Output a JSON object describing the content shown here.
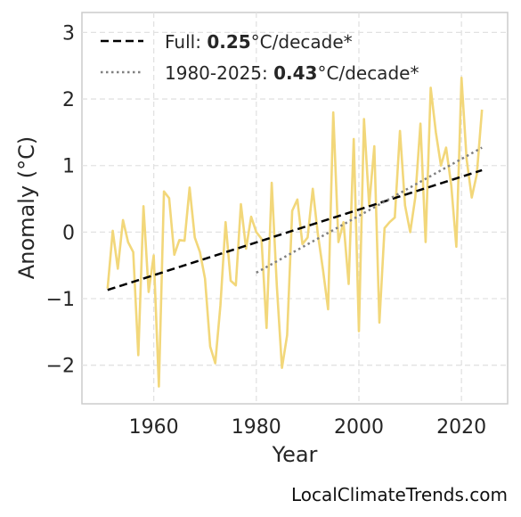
{
  "chart_data": {
    "type": "line",
    "xlabel": "Year",
    "ylabel": "Anomaly (°C)",
    "xlim": [
      1946,
      2029
    ],
    "ylim": [
      -2.58,
      3.3
    ],
    "xticks": [
      "1960",
      "1980",
      "2000",
      "2020"
    ],
    "xtick_values": [
      1960,
      1980,
      2000,
      2020
    ],
    "yticks": [
      "−2",
      "−1",
      "0",
      "1",
      "2",
      "3"
    ],
    "ytick_values": [
      -2,
      -1,
      0,
      1,
      2,
      3
    ],
    "grid": true,
    "legend_placement": "top-left",
    "series": [
      {
        "kind": "anomaly",
        "color": "#f2d77a",
        "x": [
          1951,
          1952,
          1953,
          1954,
          1955,
          1956,
          1957,
          1958,
          1959,
          1960,
          1961,
          1962,
          1963,
          1964,
          1965,
          1966,
          1967,
          1968,
          1969,
          1970,
          1971,
          1972,
          1973,
          1974,
          1975,
          1976,
          1977,
          1978,
          1979,
          1980,
          1981,
          1982,
          1983,
          1984,
          1985,
          1986,
          1987,
          1988,
          1989,
          1990,
          1991,
          1992,
          1993,
          1994,
          1995,
          1996,
          1997,
          1998,
          1999,
          2000,
          2001,
          2002,
          2003,
          2004,
          2005,
          2006,
          2007,
          2008,
          2009,
          2010,
          2011,
          2012,
          2013,
          2014,
          2015,
          2016,
          2017,
          2018,
          2019,
          2020,
          2021,
          2022,
          2023,
          2024
        ],
        "y": [
          -0.85,
          0.02,
          -0.55,
          0.18,
          -0.15,
          -0.3,
          -1.85,
          0.39,
          -0.9,
          -0.35,
          -2.32,
          0.61,
          0.51,
          -0.34,
          -0.12,
          -0.13,
          0.67,
          -0.08,
          -0.3,
          -0.7,
          -1.72,
          -1.97,
          -1.1,
          0.15,
          -0.73,
          -0.8,
          0.42,
          -0.25,
          0.23,
          0.0,
          -0.1,
          -1.44,
          0.74,
          -0.8,
          -2.04,
          -1.55,
          0.32,
          0.49,
          -0.18,
          -0.08,
          0.65,
          -0.03,
          -0.57,
          -1.16,
          1.8,
          -0.15,
          0.15,
          -0.78,
          1.4,
          -1.49,
          1.7,
          0.4,
          1.29,
          -1.36,
          0.06,
          0.15,
          0.22,
          1.52,
          0.4,
          0.0,
          0.52,
          1.63,
          -0.15,
          2.17,
          1.5,
          1.0,
          1.27,
          0.7,
          -0.22,
          2.32,
          1.1,
          0.52,
          0.87,
          1.84
        ]
      },
      {
        "kind": "trend-full",
        "name": "Full",
        "rate": "0.25",
        "unit": "°C/decade*",
        "color": "#000000",
        "x": [
          1951,
          2024
        ],
        "y": [
          -0.87,
          0.93
        ]
      },
      {
        "kind": "trend-recent",
        "name": "1980-2025",
        "rate": "0.43",
        "unit": "°C/decade*",
        "color": "#808080",
        "x": [
          1980,
          2024
        ],
        "y": [
          -0.61,
          1.27
        ]
      }
    ]
  },
  "credit": "LocalClimateTrends.com"
}
